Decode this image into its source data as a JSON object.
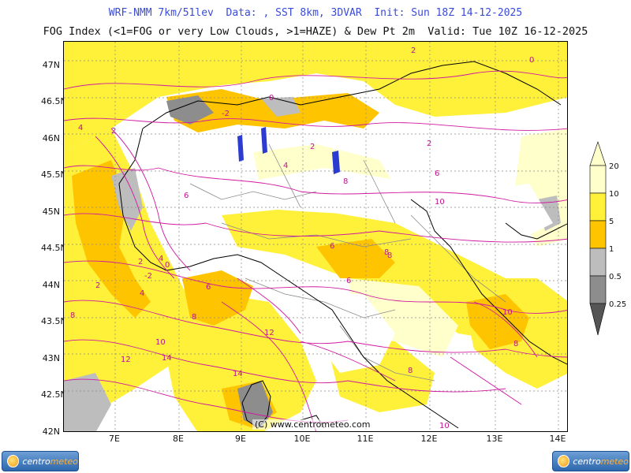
{
  "header": {
    "line1": "WRF-NMM 7km/51lev  Data: , SST 8km, 3DVAR  Init: Sun 18Z 14-12-2025",
    "line2": "FOG Index (<1=FOG or very Low Clouds, >1=HAZE) & Dew Pt 2m  Valid: Tue 10Z 16-12-2025"
  },
  "axes": {
    "lat_labels": [
      "47N",
      "46.5N",
      "46N",
      "45.5N",
      "45N",
      "44.5N",
      "44N",
      "43.5N",
      "43N",
      "42.5N",
      "42N"
    ],
    "lon_labels": [
      "7E",
      "8E",
      "9E",
      "10E",
      "11E",
      "12E",
      "13E",
      "14E"
    ]
  },
  "legend": {
    "labels": [
      "20",
      "10",
      "5",
      "1",
      "0.5",
      "0.25"
    ],
    "colors": {
      "very_high": "#ffffcc",
      "high": "#fff03a",
      "mid": "#ffc400",
      "low": "#bdbdbd",
      "lower": "#8d8d8d",
      "lowest": "#555555"
    }
  },
  "contour_labels": [
    "2",
    "0",
    "4",
    "2",
    "0",
    "-2",
    "2",
    "2",
    "4",
    "6",
    "8",
    "6",
    "6",
    "8",
    "10",
    "10",
    "12",
    "12",
    "14",
    "14",
    "8",
    "10",
    "8",
    "8",
    "8",
    "10",
    "4",
    "6",
    "2",
    "0",
    "-2",
    "2",
    "4",
    "6",
    "8"
  ],
  "credit": "(C) www.centrometeo.com",
  "logo": {
    "left_text_a": "centro",
    "left_text_b": "meteo",
    "right_text_a": "centro",
    "right_text_b": "meteo"
  },
  "map_colors": {
    "haze_light": "#ffffcc",
    "haze_yellow": "#fff03a",
    "haze_orange": "#ffc400",
    "fog_grey": "#bdbdbd",
    "fog_dark": "#8d8d8d",
    "dewpoint_contour": "#d01aa0",
    "coast": "#000000",
    "region_border": "#8a8a8a"
  }
}
